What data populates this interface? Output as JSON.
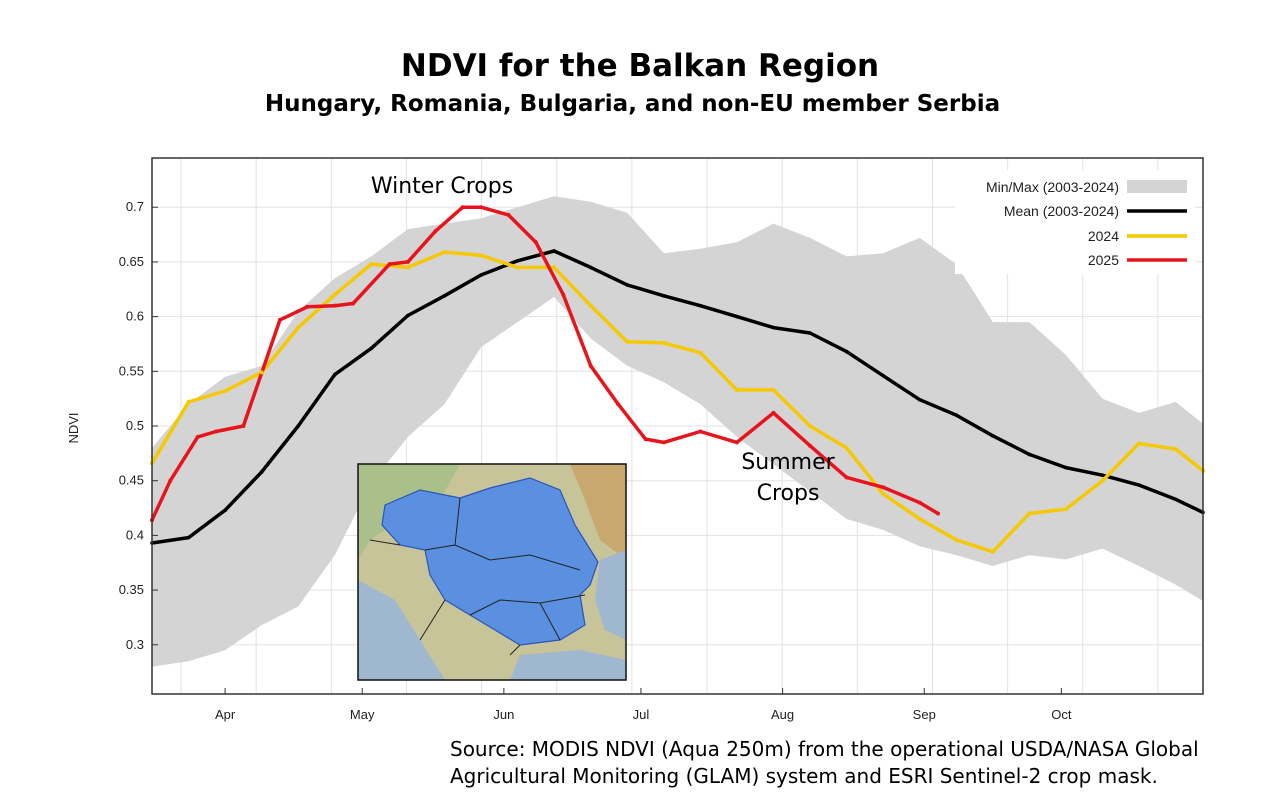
{
  "header": {
    "title": "NDVI for the Balkan Region",
    "subtitle": "Hungary, Romania, Bulgaria, and non-EU member Serbia"
  },
  "source": {
    "line1": "Source: MODIS NDVI (Aqua 250m) from the operational USDA/NASA Global",
    "line2": "Agricultural Monitoring (GLAM) system and ESRI Sentinel-2 crop mask."
  },
  "annotations": {
    "winter": "Winter Crops",
    "summer_line1": "Summer",
    "summer_line2": "Crops"
  },
  "colors": {
    "band": "#d4d4d4",
    "mean": "#000000",
    "y2024": "#f5c800",
    "y2025": "#e8141c",
    "map_land": "#c9c59a",
    "map_region": "#5b8fe0",
    "map_sea": "#9fb8d0"
  },
  "chart_data": {
    "type": "line",
    "title": "NDVI for the Balkan Region",
    "subtitle": "Hungary, Romania, Bulgaria, and non-EU member Serbia",
    "xlabel": "",
    "ylabel": "NDVI",
    "xlim": [
      75,
      305
    ],
    "ylim": [
      0.255,
      0.745
    ],
    "yticks": [
      0.3,
      0.35,
      0.4,
      0.45,
      0.5,
      0.55,
      0.6,
      0.65,
      0.7
    ],
    "ytick_labels": [
      "0.3",
      "0.35",
      "0.4",
      "0.45",
      "0.5",
      "0.55",
      "0.6",
      "0.65",
      "0.7"
    ],
    "xticks": [
      91,
      121,
      152,
      182,
      213,
      244,
      274
    ],
    "xtick_labels": [
      "Apr",
      "May",
      "Jun",
      "Jul",
      "Aug",
      "Sep",
      "Oct"
    ],
    "grid": true,
    "legend_position": "top-right",
    "legend": [
      "Min/Max (2003-2024)",
      "Mean (2003-2024)",
      "2024",
      "2025"
    ],
    "x": [
      75,
      83,
      91,
      99,
      107,
      115,
      123,
      131,
      139,
      147,
      155,
      163,
      171,
      179,
      187,
      195,
      203,
      211,
      219,
      227,
      235,
      243,
      251,
      259,
      267,
      275,
      283,
      291,
      299,
      305
    ],
    "band": {
      "name": "Min/Max (2003-2024)",
      "min": [
        0.28,
        0.285,
        0.295,
        0.318,
        0.335,
        0.382,
        0.448,
        0.49,
        0.52,
        0.572,
        0.595,
        0.618,
        0.58,
        0.555,
        0.54,
        0.52,
        0.49,
        0.465,
        0.44,
        0.415,
        0.405,
        0.39,
        0.382,
        0.372,
        0.382,
        0.378,
        0.388,
        0.372,
        0.355,
        0.34
      ],
      "max": [
        0.48,
        0.52,
        0.545,
        0.555,
        0.605,
        0.635,
        0.655,
        0.68,
        0.685,
        0.69,
        0.7,
        0.71,
        0.705,
        0.695,
        0.658,
        0.662,
        0.668,
        0.685,
        0.672,
        0.655,
        0.658,
        0.672,
        0.648,
        0.595,
        0.595,
        0.565,
        0.525,
        0.512,
        0.522,
        0.502
      ]
    },
    "series": [
      {
        "name": "Mean (2003-2024)",
        "x": [
          75,
          83,
          91,
          99,
          107,
          115,
          123,
          131,
          139,
          147,
          155,
          163,
          171,
          179,
          187,
          195,
          203,
          211,
          219,
          227,
          235,
          243,
          251,
          259,
          267,
          275,
          283,
          291,
          299,
          305
        ],
        "values": [
          0.393,
          0.398,
          0.423,
          0.458,
          0.5,
          0.547,
          0.571,
          0.601,
          0.619,
          0.638,
          0.651,
          0.66,
          0.645,
          0.629,
          0.619,
          0.61,
          0.6,
          0.59,
          0.585,
          0.568,
          0.546,
          0.524,
          0.51,
          0.491,
          0.474,
          0.462,
          0.455,
          0.446,
          0.433,
          0.421
        ]
      },
      {
        "name": "2024",
        "x": [
          75,
          83,
          91,
          99,
          107,
          115,
          123,
          131,
          139,
          147,
          155,
          163,
          171,
          179,
          187,
          195,
          203,
          211,
          219,
          227,
          235,
          243,
          251,
          259,
          267,
          275,
          283,
          291,
          299,
          305
        ],
        "values": [
          0.466,
          0.522,
          0.532,
          0.549,
          0.59,
          0.62,
          0.648,
          0.645,
          0.659,
          0.656,
          0.645,
          0.645,
          0.61,
          0.577,
          0.576,
          0.567,
          0.533,
          0.533,
          0.5,
          0.48,
          0.438,
          0.415,
          0.396,
          0.385,
          0.42,
          0.424,
          0.45,
          0.484,
          0.479,
          0.459
        ]
      },
      {
        "name": "2025",
        "x": [
          75,
          79,
          85,
          89,
          95,
          103,
          109,
          115,
          119,
          127,
          131,
          137,
          143,
          147,
          153,
          159,
          165,
          171,
          177,
          183,
          187,
          195,
          203,
          211,
          219,
          227,
          235,
          243,
          247
        ],
        "values": [
          0.414,
          0.45,
          0.49,
          0.495,
          0.5,
          0.597,
          0.609,
          0.61,
          0.612,
          0.648,
          0.65,
          0.678,
          0.7,
          0.7,
          0.693,
          0.668,
          0.62,
          0.555,
          0.52,
          0.488,
          0.485,
          0.495,
          0.485,
          0.512,
          0.482,
          0.453,
          0.444,
          0.43,
          0.42
        ]
      }
    ]
  }
}
